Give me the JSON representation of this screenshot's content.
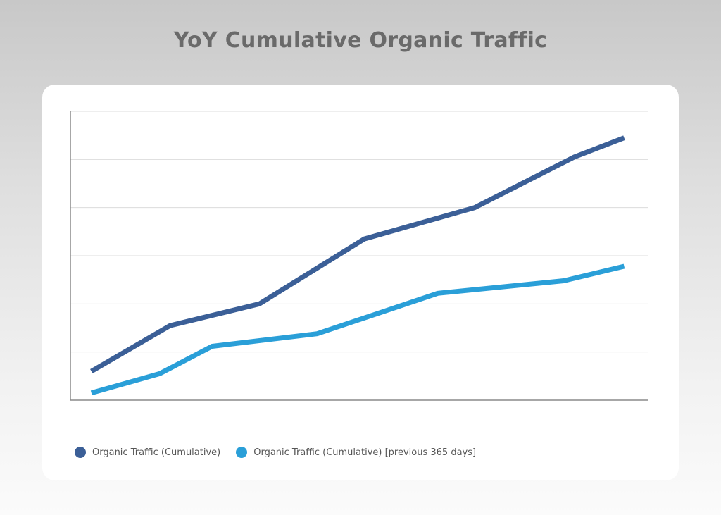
{
  "chart_data": {
    "type": "line",
    "title": "YoY Cumulative Organic Traffic",
    "xlabel": "",
    "ylabel": "",
    "ylim": [
      0,
      6
    ],
    "xlim": [
      0,
      11
    ],
    "grid": true,
    "legend_position": "bottom-left",
    "series": [
      {
        "name": "Organic Traffic (Cumulative)",
        "color": "#3b5f97",
        "points": [
          [
            0.4,
            0.6
          ],
          [
            1.9,
            1.55
          ],
          [
            3.6,
            2.0
          ],
          [
            5.6,
            3.35
          ],
          [
            7.7,
            4.0
          ],
          [
            9.6,
            5.05
          ],
          [
            10.55,
            5.45
          ]
        ]
      },
      {
        "name": "Organic Traffic (Cumulative) [previous 365 days]",
        "color": "#2a9fd8",
        "points": [
          [
            0.4,
            0.15
          ],
          [
            1.7,
            0.55
          ],
          [
            2.7,
            1.12
          ],
          [
            4.7,
            1.38
          ],
          [
            7.0,
            2.22
          ],
          [
            9.4,
            2.48
          ],
          [
            10.55,
            2.78
          ]
        ]
      }
    ]
  }
}
